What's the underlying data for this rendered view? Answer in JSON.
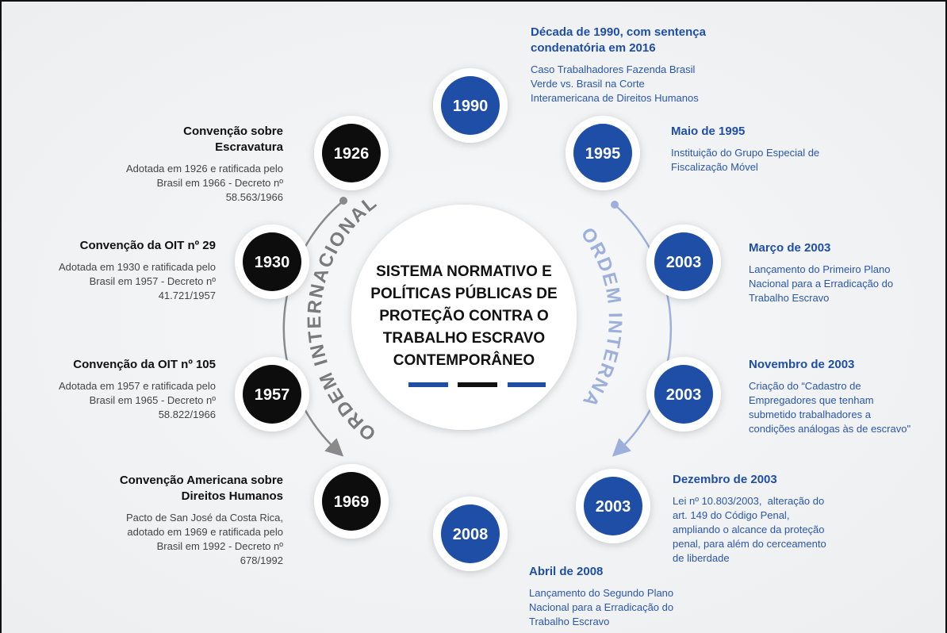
{
  "center": {
    "title_lines": [
      "SISTEMA NORMATIVO E",
      "POLÍTICAS PÚBLICAS DE",
      "PROTEÇÃO CONTRA O",
      "TRABALHO ESCRAVO",
      "CONTEMPORÂNEO"
    ]
  },
  "arcs": {
    "left": "ORDEM INTERNACIONAL",
    "right": "ORDEM INTERNA"
  },
  "international": [
    {
      "year": "1926",
      "title": [
        "Convenção sobre",
        "Escravatura"
      ],
      "description": [
        "Adotada em 1926 e ratificada pelo",
        "Brasil em 1966 - Decreto nº",
        "58.563/1966"
      ]
    },
    {
      "year": "1930",
      "title": [
        "Convenção da OIT nº 29"
      ],
      "description": [
        "Adotada em 1930 e ratificada pelo",
        "Brasil em 1957 - Decreto nº",
        "41.721/1957"
      ]
    },
    {
      "year": "1957",
      "title": [
        "Convenção da OIT nº 105"
      ],
      "description": [
        "Adotada em 1957 e ratificada pelo",
        "Brasil em 1965 - Decreto nº",
        "58.822/1966"
      ]
    },
    {
      "year": "1969",
      "title": [
        "Convenção Americana sobre",
        "Direitos Humanos"
      ],
      "description": [
        "Pacto de San José da Costa Rica,",
        "adotado em 1969 e ratificada pelo",
        "Brasil em 1992 - Decreto nº",
        "678/1992"
      ]
    }
  ],
  "internal": [
    {
      "year": "1990",
      "title": [
        "Década de 1990, com sentença",
        "condenatória em 2016"
      ],
      "description": [
        "Caso Trabalhadores Fazenda Brasil",
        "Verde vs. Brasil na Corte",
        "Interamericana de Direitos Humanos"
      ]
    },
    {
      "year": "1995",
      "title": [
        "Maio de 1995"
      ],
      "description": [
        "Instituição do Grupo Especial de",
        "Fiscalização Móvel"
      ]
    },
    {
      "year": "2003",
      "title": [
        "Março de 2003"
      ],
      "description": [
        "Lançamento do Primeiro Plano",
        "Nacional para a Erradicação do",
        "Trabalho Escravo"
      ]
    },
    {
      "year": "2003",
      "title": [
        "Novembro de 2003"
      ],
      "description": [
        "Criação do “Cadastro de",
        "Empregadores que tenham",
        "submetido trabalhadores a",
        "condições análogas às de escravo\""
      ]
    },
    {
      "year": "2003",
      "title": [
        "Dezembro de 2003"
      ],
      "description": [
        "Lei nº 10.803/2003,  alteração do",
        "art. 149 do Código Penal,",
        "ampliando o alcance da proteção",
        "penal, para além do cerceamento",
        "de liberdade"
      ]
    },
    {
      "year": "2008",
      "title": [
        "Abril de 2008"
      ],
      "description": [
        "Lançamento do Segundo Plano",
        "Nacional para a Erradicação do",
        "Trabalho Escravo"
      ]
    }
  ]
}
